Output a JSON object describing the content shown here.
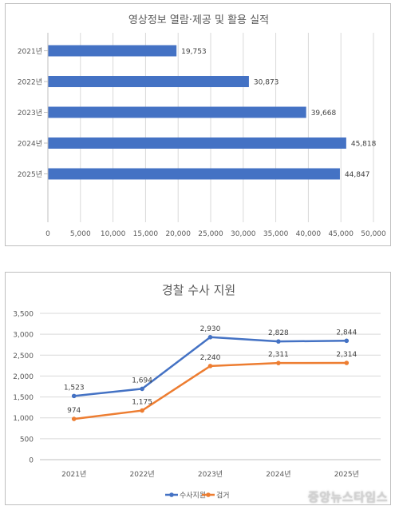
{
  "chart_data": [
    {
      "type": "bar",
      "orientation": "horizontal",
      "title": "영상정보 열람·제공 및 활용 실적",
      "categories": [
        "2021년",
        "2022년",
        "2023년",
        "2024년",
        "2025년"
      ],
      "values": [
        19753,
        30873,
        39668,
        45818,
        44847
      ],
      "value_labels": [
        "19,753",
        "30,873",
        "39,668",
        "45,818",
        "44,847"
      ],
      "xlim": [
        0,
        50000
      ],
      "x_ticks": [
        "0",
        "5,000",
        "10,000",
        "15,000",
        "20,000",
        "25,000",
        "30,000",
        "35,000",
        "40,000",
        "45,000",
        "50,000"
      ],
      "grid": "vertical",
      "color": "#4472c4"
    },
    {
      "type": "line",
      "title": "경찰 수사 지원",
      "categories": [
        "2021년",
        "2022년",
        "2023년",
        "2024년",
        "2025년"
      ],
      "ylim": [
        0,
        3500
      ],
      "y_ticks": [
        "0",
        "500",
        "1,000",
        "1,500",
        "2,000",
        "2,500",
        "3,000",
        "3,500"
      ],
      "grid": "horizontal",
      "legend_position": "bottom",
      "series": [
        {
          "name": "수사지원",
          "values": [
            1523,
            1694,
            2930,
            2828,
            2844
          ],
          "labels": [
            "1,523",
            "1,694",
            "2,930",
            "2,828",
            "2,844"
          ],
          "color": "#4472c4"
        },
        {
          "name": "검거",
          "values": [
            974,
            1175,
            2240,
            2311,
            2314
          ],
          "labels": [
            "974",
            "1,175",
            "2,240",
            "2,311",
            "2,314"
          ],
          "color": "#ed7d31"
        }
      ]
    }
  ],
  "watermark": "중앙뉴스타임스"
}
